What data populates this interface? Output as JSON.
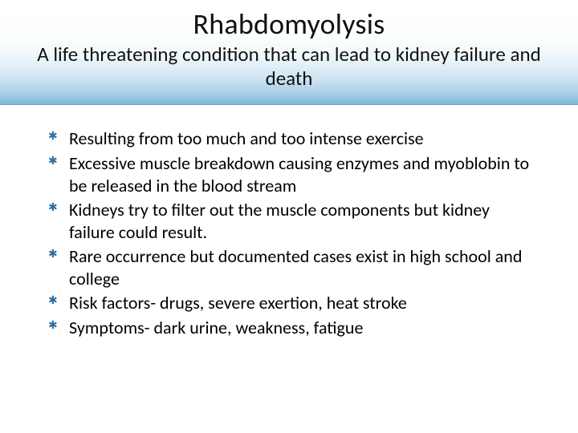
{
  "header": {
    "title": "Rhabdomyolysis",
    "subtitle": "A life threatening condition that can lead to kidney failure and death"
  },
  "bullets": [
    "Resulting from too much and too intense exercise",
    "Excessive muscle breakdown causing enzymes and myoblobin to be released in the blood stream",
    "Kidneys try to filter out the muscle components but kidney failure could result.",
    "Rare occurrence but documented cases exist in high school and college",
    "Risk factors- drugs, severe exertion, heat stroke",
    "Symptoms- dark urine, weakness, fatigue"
  ],
  "style": {
    "title_fontsize": 36,
    "subtitle_fontsize": 25,
    "bullet_fontsize": 22,
    "bullet_marker_color": "#2f6ea0",
    "text_color": "#000000",
    "gradient_stops": [
      "#ffffff",
      "#fdfefe",
      "#eef6fb",
      "#cfe5f2",
      "#a7cde6",
      "#7fb5d9"
    ],
    "background_color": "#ffffff",
    "slide_width": 720,
    "slide_height": 540
  }
}
